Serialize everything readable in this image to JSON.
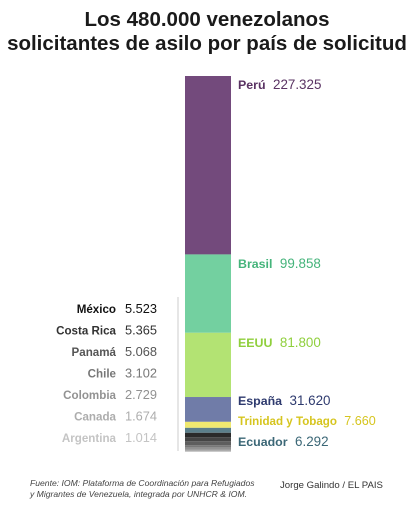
{
  "title_lines": [
    "Los 480.000 venezolanos",
    "solicitantes de asilo por país de solicitud"
  ],
  "chart_data": {
    "type": "bar",
    "stacked": true,
    "title": "Los 480.000 venezolanos solicitantes de asilo por país de solicitud",
    "segments": [
      {
        "name": "Perú",
        "value": 227325,
        "value_label": "227.325",
        "color": "#734a7c",
        "label_color": "#5a3363"
      },
      {
        "name": "Brasil",
        "value": 99858,
        "value_label": "99.858",
        "color": "#73d0a0",
        "label_color": "#45b47b"
      },
      {
        "name": "EEUU",
        "value": 81800,
        "value_label": "81.800",
        "color": "#b3e373",
        "label_color": "#8fcf3c"
      },
      {
        "name": "España",
        "value": 31620,
        "value_label": "31.620",
        "color": "#707ca8",
        "label_color": "#2e3a6e"
      },
      {
        "name": "Trinidad y Tobago",
        "value": 7660,
        "value_label": "7.660",
        "color": "#f0e96f",
        "label_color": "#d6c51f"
      },
      {
        "name": "Ecuador",
        "value": 6292,
        "value_label": "6.292",
        "color": "#5b7f8b",
        "label_color": "#3b6776"
      },
      {
        "name": "México",
        "value": 5523,
        "value_label": "5.523",
        "color": "#2a2a2a",
        "label_color": "#111111"
      },
      {
        "name": "Costa Rica",
        "value": 5365,
        "value_label": "5.365",
        "color": "#454545",
        "label_color": "#333333"
      },
      {
        "name": "Panamá",
        "value": 5068,
        "value_label": "5.068",
        "color": "#5e5e5e",
        "label_color": "#555555"
      },
      {
        "name": "Chile",
        "value": 3102,
        "value_label": "3.102",
        "color": "#787878",
        "label_color": "#777777"
      },
      {
        "name": "Colombia",
        "value": 2729,
        "value_label": "2.729",
        "color": "#929292",
        "label_color": "#929292"
      },
      {
        "name": "Canada",
        "value": 1674,
        "value_label": "1.674",
        "color": "#acacac",
        "label_color": "#adadad"
      },
      {
        "name": "Argentina",
        "value": 1014,
        "value_label": "1.014",
        "color": "#c6c6c6",
        "label_color": "#c4c4c4"
      }
    ]
  },
  "source_text": "Fuente: IOM: Plataforma de Coordinación para Refugiados y Migrantes de Venezuela, integrada por UNHCR & IOM.",
  "credit_text": "Jorge Galindo / EL PAIS"
}
